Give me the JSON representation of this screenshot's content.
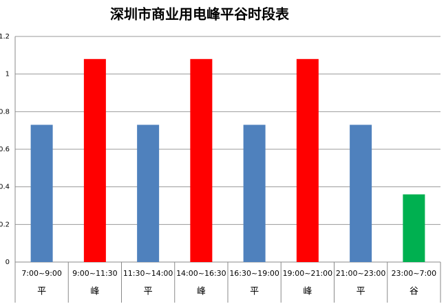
{
  "chart_data": {
    "type": "bar",
    "title": "深圳市商业用电峰平谷时段表",
    "categories": [
      [
        "7:00~9:00",
        "平"
      ],
      [
        "9:00~11:30",
        "峰"
      ],
      [
        "11:30~14:00",
        "平"
      ],
      [
        "14:00~16:30",
        "峰"
      ],
      [
        "16:30~19:00",
        "平"
      ],
      [
        "19:00~21:00",
        "峰"
      ],
      [
        "21:00~23:00",
        "平"
      ],
      [
        "23:00~7:00",
        "谷"
      ]
    ],
    "values": [
      0.73,
      1.08,
      0.73,
      1.08,
      0.73,
      1.08,
      0.73,
      0.36
    ],
    "colors": [
      "#4f81bd",
      "#ff0000",
      "#4f81bd",
      "#ff0000",
      "#4f81bd",
      "#ff0000",
      "#4f81bd",
      "#00b050"
    ],
    "ylim": [
      0,
      1.2
    ],
    "yticks": [
      0,
      0.2,
      0.4,
      0.6,
      0.8,
      1,
      1.2
    ],
    "grid": true
  }
}
